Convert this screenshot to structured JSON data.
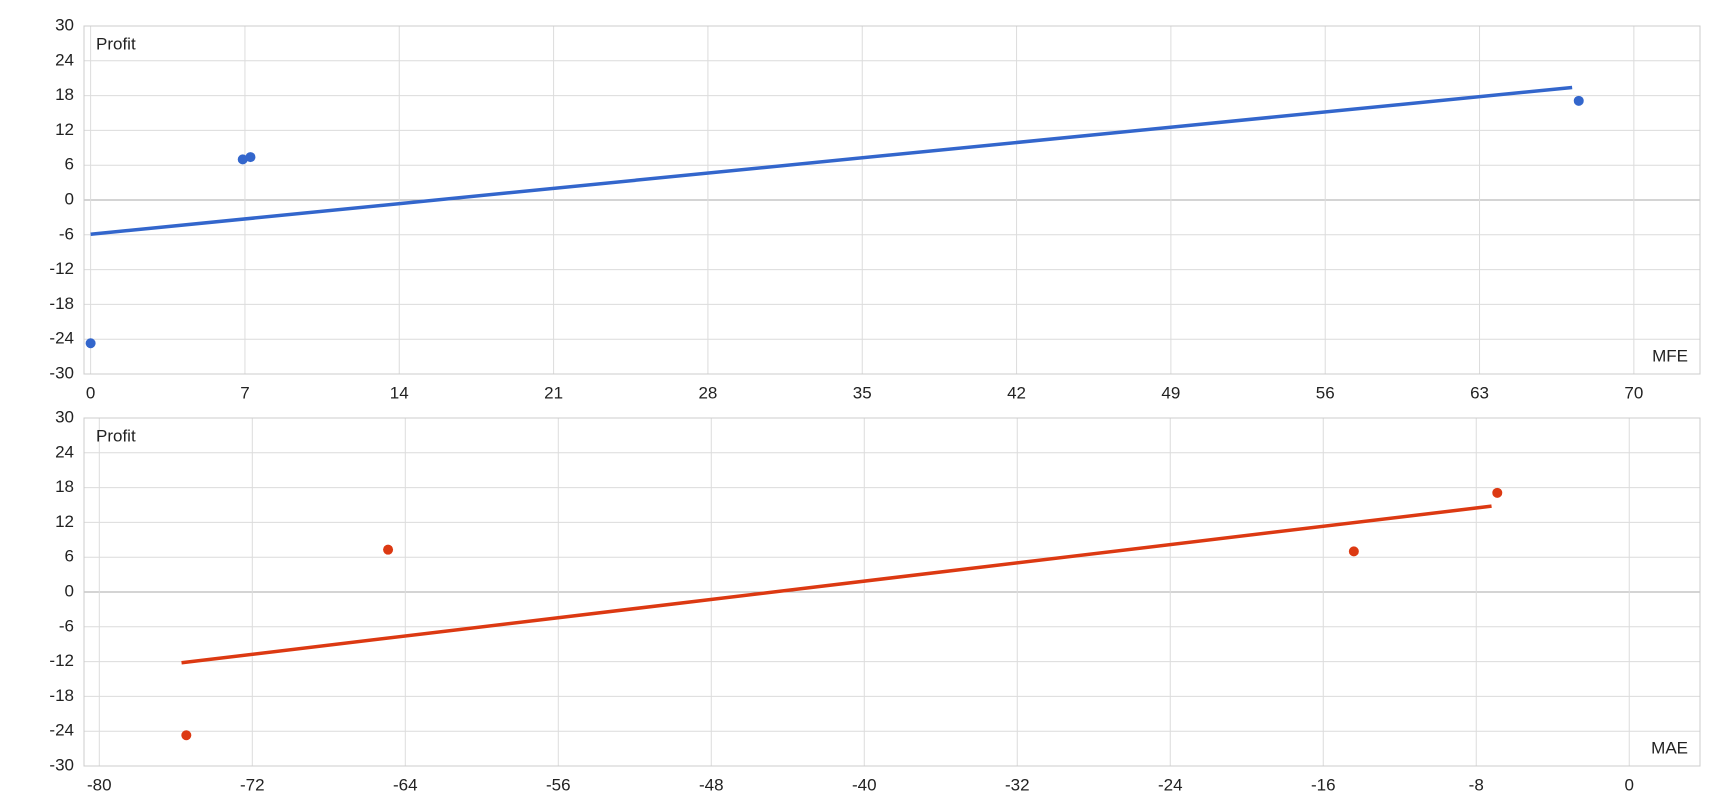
{
  "chart_data": [
    {
      "type": "scatter",
      "ylabel": "Profit",
      "xlabel": "MFE",
      "xlim": [
        -0.3,
        73
      ],
      "xticks": [
        0,
        7,
        14,
        21,
        28,
        35,
        42,
        49,
        56,
        63,
        70
      ],
      "ylim": [
        -30,
        30
      ],
      "yticks": [
        -30,
        -24,
        -18,
        -12,
        -6,
        0,
        6,
        12,
        18,
        24,
        30
      ],
      "grid": true,
      "series": [
        {
          "color": "#3366cc",
          "x": [
            0,
            6.9,
            7.25,
            67.5
          ],
          "values": [
            -24.7,
            7.0,
            7.4,
            17.1
          ]
        }
      ],
      "trendline": {
        "color": "#3366cc",
        "x": [
          0,
          67.2
        ],
        "values": [
          -5.9,
          19.4
        ]
      }
    },
    {
      "type": "scatter",
      "ylabel": "Profit",
      "xlabel": "MAE",
      "xlim": [
        -80.8,
        3.7
      ],
      "xticks": [
        -80,
        -72,
        -64,
        -56,
        -48,
        -40,
        -32,
        -24,
        -16,
        -8,
        0
      ],
      "ylim": [
        -30,
        30
      ],
      "yticks": [
        -30,
        -24,
        -18,
        -12,
        -6,
        0,
        6,
        12,
        18,
        24,
        30
      ],
      "grid": true,
      "series": [
        {
          "color": "#dc3912",
          "x": [
            -75.45,
            -64.9,
            -14.4,
            -6.9
          ],
          "values": [
            -24.7,
            7.3,
            7.0,
            17.1
          ]
        }
      ],
      "trendline": {
        "color": "#dc3912",
        "x": [
          -75.7,
          -7.2
        ],
        "values": [
          -12.2,
          14.8
        ]
      }
    }
  ]
}
